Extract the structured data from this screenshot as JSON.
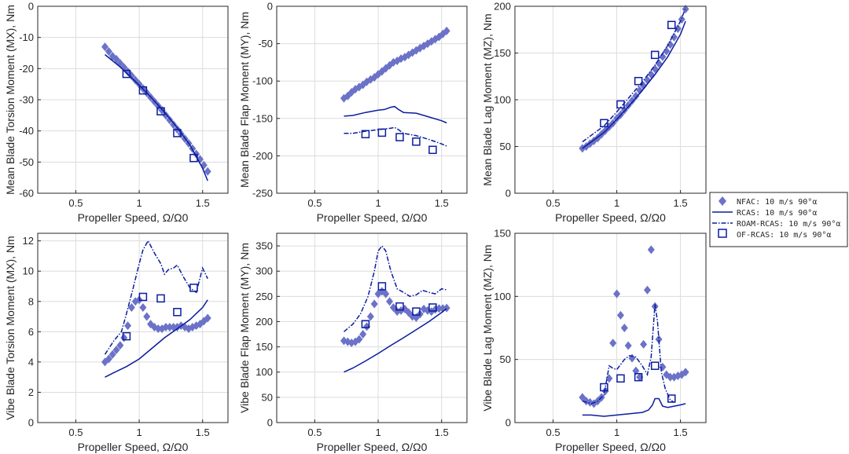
{
  "colors": {
    "series": "#0a1d9e",
    "marker_fill": "#6b72c8",
    "grid": "#dcdcdc",
    "axis": "#262626"
  },
  "legend": {
    "placement": "right",
    "entries": [
      {
        "label": "NFAC: 10 m/s 90°α",
        "style": "diamond"
      },
      {
        "label": "RCAS: 10 m/s 90°α",
        "style": "solid"
      },
      {
        "label": "ROAM-RCAS: 10 m/s 90°α",
        "style": "dashdot"
      },
      {
        "label": "OF-RCAS: 10 m/s 90°α",
        "style": "square"
      }
    ]
  },
  "chart_data": [
    {
      "type": "line",
      "xlabel": "Propeller Speed, Ω/Ω0",
      "ylabel": "Mean Blade Torsion Moment (MX), Nm",
      "xlim": [
        0.2,
        1.7
      ],
      "ylim": [
        -60,
        0
      ],
      "xticks": [
        0.5,
        1,
        1.5
      ],
      "yticks": [
        -60,
        -50,
        -40,
        -30,
        -20,
        -10,
        0
      ],
      "xtick_labels": [
        "0.5",
        "1",
        "1.5"
      ],
      "ytick_labels": [
        "-60",
        "-50",
        "-40",
        "-30",
        "-20",
        "-10",
        "0"
      ],
      "grid": true,
      "series": [
        {
          "name": "NFAC: 10 m/s 90°α",
          "style": "diamond",
          "x": [
            0.73,
            0.76,
            0.79,
            0.82,
            0.85,
            0.88,
            0.91,
            0.94,
            0.97,
            1.0,
            1.03,
            1.06,
            1.09,
            1.12,
            1.15,
            1.18,
            1.21,
            1.24,
            1.27,
            1.3,
            1.33,
            1.36,
            1.39,
            1.42,
            1.45,
            1.48,
            1.51,
            1.54
          ],
          "y": [
            -13,
            -14.5,
            -16,
            -17,
            -18.3,
            -19.6,
            -21,
            -22.3,
            -23.7,
            -25,
            -26.4,
            -27.8,
            -29.2,
            -30.6,
            -32,
            -33.4,
            -35,
            -36.5,
            -38,
            -39.5,
            -41,
            -42.5,
            -44,
            -45.7,
            -47.4,
            -49.1,
            -51,
            -53
          ]
        },
        {
          "name": "RCAS: 10 m/s 90°α",
          "style": "solid",
          "x": [
            0.73,
            0.85,
            1.0,
            1.1,
            1.2,
            1.3,
            1.4,
            1.5,
            1.54
          ],
          "y": [
            -15.5,
            -19.5,
            -25.3,
            -29.5,
            -34,
            -39,
            -44.5,
            -52,
            -56
          ]
        },
        {
          "name": "OF-RCAS: 10 m/s 90°α",
          "style": "square",
          "x": [
            0.9,
            1.03,
            1.17,
            1.3,
            1.43
          ],
          "y": [
            -21.7,
            -27,
            -33.7,
            -40.7,
            -48.7
          ]
        }
      ]
    },
    {
      "type": "line",
      "xlabel": "Propeller Speed, Ω/Ω0",
      "ylabel": "Mean Blade Flap Moment (MY), Nm",
      "xlim": [
        0.2,
        1.7
      ],
      "ylim": [
        -250,
        0
      ],
      "xticks": [
        0.5,
        1,
        1.5
      ],
      "yticks": [
        -250,
        -200,
        -150,
        -100,
        -50,
        0
      ],
      "xtick_labels": [
        "0.5",
        "1",
        "1.5"
      ],
      "ytick_labels": [
        "-250",
        "-200",
        "-150",
        "-100",
        "-50",
        "0"
      ],
      "grid": true,
      "series": [
        {
          "name": "NFAC: 10 m/s 90°α",
          "style": "diamond",
          "x": [
            0.73,
            0.76,
            0.79,
            0.82,
            0.85,
            0.88,
            0.91,
            0.94,
            0.97,
            1.0,
            1.03,
            1.06,
            1.09,
            1.12,
            1.15,
            1.18,
            1.21,
            1.24,
            1.27,
            1.3,
            1.33,
            1.36,
            1.39,
            1.42,
            1.45,
            1.48,
            1.51,
            1.54
          ],
          "y": [
            -123,
            -120,
            -115,
            -111,
            -108,
            -105,
            -101,
            -98,
            -95,
            -91,
            -87,
            -83,
            -79,
            -75,
            -73,
            -70,
            -68,
            -65,
            -62,
            -59,
            -56,
            -53,
            -50,
            -47,
            -44,
            -41,
            -37,
            -33
          ]
        },
        {
          "name": "RCAS: 10 m/s 90°α",
          "style": "solid",
          "x": [
            0.73,
            0.8,
            0.9,
            1.0,
            1.05,
            1.1,
            1.13,
            1.16,
            1.2,
            1.3,
            1.4,
            1.5,
            1.54
          ],
          "y": [
            -147,
            -146,
            -142,
            -139,
            -138,
            -135,
            -134,
            -138,
            -142,
            -143,
            -148,
            -153,
            -156
          ]
        },
        {
          "name": "ROAM-RCAS: 10 m/s 90°α",
          "style": "dashdot",
          "x": [
            0.73,
            0.8,
            0.9,
            1.0,
            1.05,
            1.1,
            1.13,
            1.16,
            1.2,
            1.3,
            1.4,
            1.5,
            1.54
          ],
          "y": [
            -170,
            -170,
            -167,
            -165,
            -164,
            -163,
            -162,
            -165,
            -170,
            -173,
            -178,
            -184,
            -187
          ]
        },
        {
          "name": "OF-RCAS: 10 m/s 90°α",
          "style": "square",
          "x": [
            0.9,
            1.03,
            1.17,
            1.3,
            1.43
          ],
          "y": [
            -171,
            -169,
            -175,
            -181,
            -192
          ]
        }
      ]
    },
    {
      "type": "line",
      "xlabel": "Propeller Speed, Ω/Ω0",
      "ylabel": "Mean Blade Lag Moment (MZ), Nm",
      "xlim": [
        0.2,
        1.7
      ],
      "ylim": [
        0,
        200
      ],
      "xticks": [
        0.5,
        1,
        1.5
      ],
      "yticks": [
        0,
        50,
        100,
        150,
        200
      ],
      "xtick_labels": [
        "0.5",
        "1",
        "1.5"
      ],
      "ytick_labels": [
        "0",
        "50",
        "100",
        "150",
        "200"
      ],
      "grid": true,
      "series": [
        {
          "name": "NFAC: 10 m/s 90°α",
          "style": "diamond",
          "x": [
            0.73,
            0.76,
            0.79,
            0.82,
            0.85,
            0.88,
            0.91,
            0.94,
            0.97,
            1.0,
            1.03,
            1.06,
            1.09,
            1.12,
            1.15,
            1.18,
            1.21,
            1.24,
            1.27,
            1.3,
            1.33,
            1.36,
            1.39,
            1.42,
            1.45,
            1.48,
            1.51,
            1.54
          ],
          "y": [
            48,
            50,
            53,
            56,
            59,
            63,
            67,
            71,
            75,
            80,
            84,
            89,
            94,
            99,
            104,
            110,
            115,
            121,
            127,
            133,
            139,
            146,
            152,
            159,
            167,
            176,
            186,
            197
          ]
        },
        {
          "name": "RCAS: 10 m/s 90°α",
          "style": "solid",
          "x": [
            0.73,
            0.8,
            0.9,
            1.0,
            1.1,
            1.2,
            1.3,
            1.4,
            1.5,
            1.54
          ],
          "y": [
            48,
            55,
            65,
            79,
            94,
            110,
            127,
            146,
            170,
            184
          ]
        },
        {
          "name": "ROAM-RCAS: 10 m/s 90°α",
          "style": "dashdot",
          "x": [
            0.73,
            0.8,
            0.9,
            1.0,
            1.1,
            1.2,
            1.3,
            1.4,
            1.5,
            1.54
          ],
          "y": [
            55,
            62,
            72,
            87,
            103,
            119,
            137,
            158,
            184,
            198
          ]
        },
        {
          "name": "OF-RCAS: 10 m/s 90°α",
          "style": "square",
          "x": [
            0.9,
            1.03,
            1.17,
            1.3,
            1.43
          ],
          "y": [
            75,
            95,
            120,
            148,
            180
          ]
        }
      ]
    },
    {
      "type": "line",
      "xlabel": "Propeller Speed, Ω/Ω0",
      "ylabel": "Vibe Blade Torsion Moment (MX), Nm",
      "xlim": [
        0.2,
        1.7
      ],
      "ylim": [
        0,
        12.5
      ],
      "xticks": [
        0.5,
        1,
        1.5
      ],
      "yticks": [
        0,
        2,
        4,
        6,
        8,
        10,
        12
      ],
      "xtick_labels": [
        "0.5",
        "1",
        "1.5"
      ],
      "ytick_labels": [
        "0",
        "2",
        "4",
        "6",
        "8",
        "10",
        "12"
      ],
      "grid": true,
      "series": [
        {
          "name": "NFAC: 10 m/s 90°α",
          "style": "diamond",
          "x": [
            0.73,
            0.76,
            0.79,
            0.82,
            0.85,
            0.88,
            0.91,
            0.94,
            0.97,
            1.0,
            1.03,
            1.06,
            1.09,
            1.12,
            1.15,
            1.18,
            1.21,
            1.24,
            1.27,
            1.3,
            1.33,
            1.36,
            1.39,
            1.42,
            1.45,
            1.48,
            1.51,
            1.54
          ],
          "y": [
            4.0,
            4.2,
            4.5,
            4.8,
            5.1,
            5.6,
            6.4,
            7.6,
            8.0,
            8.1,
            7.6,
            7.0,
            6.5,
            6.3,
            6.2,
            6.2,
            6.3,
            6.3,
            6.3,
            6.3,
            6.4,
            6.3,
            6.2,
            6.3,
            6.4,
            6.5,
            6.7,
            6.9
          ]
        },
        {
          "name": "RCAS: 10 m/s 90°α",
          "style": "solid",
          "x": [
            0.73,
            0.8,
            0.9,
            1.0,
            1.1,
            1.2,
            1.3,
            1.4,
            1.5,
            1.54
          ],
          "y": [
            3.0,
            3.3,
            3.7,
            4.2,
            4.9,
            5.6,
            6.2,
            6.8,
            7.6,
            8.1
          ]
        },
        {
          "name": "ROAM-RCAS: 10 m/s 90°α",
          "style": "dashdot",
          "x": [
            0.73,
            0.8,
            0.86,
            0.9,
            0.95,
            1.0,
            1.03,
            1.07,
            1.12,
            1.17,
            1.2,
            1.23,
            1.27,
            1.3,
            1.35,
            1.4,
            1.45,
            1.5,
            1.54
          ],
          "y": [
            4.5,
            5.4,
            6.0,
            7.2,
            8.8,
            10.5,
            11.4,
            12.0,
            11.2,
            10.5,
            9.8,
            10.1,
            10.2,
            10.4,
            9.6,
            8.9,
            8.6,
            10.2,
            9.5
          ]
        },
        {
          "name": "OF-RCAS: 10 m/s 90°α",
          "style": "square",
          "x": [
            0.9,
            1.03,
            1.17,
            1.3,
            1.43
          ],
          "y": [
            5.7,
            8.3,
            8.2,
            7.3,
            8.9
          ]
        }
      ]
    },
    {
      "type": "line",
      "xlabel": "Propeller Speed, Ω/Ω0",
      "ylabel": "Vibe Blade Flap Moment (MY), Nm",
      "xlim": [
        0.2,
        1.7
      ],
      "ylim": [
        0,
        375
      ],
      "xticks": [
        0.5,
        1,
        1.5
      ],
      "yticks": [
        0,
        50,
        100,
        150,
        200,
        250,
        300,
        350
      ],
      "xtick_labels": [
        "0.5",
        "1",
        "1.5"
      ],
      "ytick_labels": [
        "0",
        "50",
        "100",
        "150",
        "200",
        "250",
        "300",
        "350"
      ],
      "grid": true,
      "series": [
        {
          "name": "NFAC: 10 m/s 90°α",
          "style": "diamond",
          "x": [
            0.73,
            0.76,
            0.79,
            0.82,
            0.85,
            0.88,
            0.91,
            0.94,
            0.97,
            1.0,
            1.03,
            1.06,
            1.09,
            1.12,
            1.15,
            1.18,
            1.21,
            1.24,
            1.27,
            1.3,
            1.33,
            1.36,
            1.39,
            1.42,
            1.45,
            1.48,
            1.51,
            1.54
          ],
          "y": [
            162,
            160,
            158,
            160,
            165,
            175,
            190,
            210,
            235,
            255,
            260,
            255,
            240,
            228,
            220,
            222,
            225,
            218,
            210,
            208,
            215,
            225,
            222,
            220,
            224,
            226,
            226,
            227
          ]
        },
        {
          "name": "RCAS: 10 m/s 90°α",
          "style": "solid",
          "x": [
            0.73,
            0.8,
            0.9,
            1.0,
            1.1,
            1.2,
            1.3,
            1.4,
            1.5,
            1.54
          ],
          "y": [
            100,
            108,
            122,
            137,
            153,
            168,
            184,
            200,
            218,
            226
          ]
        },
        {
          "name": "ROAM-RCAS: 10 m/s 90°α",
          "style": "dashdot",
          "x": [
            0.73,
            0.8,
            0.86,
            0.92,
            0.97,
            1.0,
            1.03,
            1.06,
            1.1,
            1.15,
            1.2,
            1.25,
            1.3,
            1.35,
            1.4,
            1.45,
            1.5,
            1.54
          ],
          "y": [
            180,
            195,
            215,
            250,
            300,
            340,
            350,
            340,
            300,
            265,
            258,
            250,
            253,
            262,
            258,
            255,
            265,
            263
          ]
        },
        {
          "name": "OF-RCAS: 10 m/s 90°α",
          "style": "square",
          "x": [
            0.9,
            1.03,
            1.17,
            1.3,
            1.43
          ],
          "y": [
            195,
            270,
            230,
            220,
            228
          ]
        }
      ]
    },
    {
      "type": "line",
      "xlabel": "Propeller Speed, Ω/Ω0",
      "ylabel": "Vibe Blade Lag Moment (MZ), Nm",
      "xlim": [
        0.2,
        1.7
      ],
      "ylim": [
        0,
        150
      ],
      "xticks": [
        0.5,
        1,
        1.5
      ],
      "yticks": [
        0,
        50,
        100,
        150
      ],
      "xtick_labels": [
        "0.5",
        "1",
        "1.5"
      ],
      "ytick_labels": [
        "0",
        "50",
        "100",
        "150"
      ],
      "grid": true,
      "series": [
        {
          "name": "NFAC: 10 m/s 90°α",
          "style": "diamond",
          "x": [
            0.73,
            0.76,
            0.79,
            0.82,
            0.85,
            0.88,
            0.91,
            0.94,
            0.97,
            1.0,
            1.03,
            1.06,
            1.09,
            1.12,
            1.15,
            1.18,
            1.21,
            1.24,
            1.27,
            1.3,
            1.33,
            1.36,
            1.39,
            1.42,
            1.45,
            1.48,
            1.51,
            1.54
          ],
          "y": [
            20,
            17,
            16,
            15,
            17,
            20,
            25,
            35,
            63,
            102,
            85,
            75,
            61,
            51,
            41,
            36,
            62,
            105,
            137,
            92,
            66,
            44,
            38,
            36,
            36,
            37,
            38,
            40
          ]
        },
        {
          "name": "RCAS: 10 m/s 90°α",
          "style": "solid",
          "x": [
            0.73,
            0.8,
            0.9,
            1.0,
            1.1,
            1.2,
            1.25,
            1.28,
            1.3,
            1.33,
            1.36,
            1.4,
            1.45,
            1.5,
            1.54
          ],
          "y": [
            6,
            6,
            5,
            6,
            7,
            8,
            10,
            14,
            19,
            19,
            13,
            12,
            13,
            14,
            15
          ]
        },
        {
          "name": "ROAM-RCAS: 10 m/s 90°α",
          "style": "dashdot",
          "x": [
            0.73,
            0.8,
            0.85,
            0.9,
            0.94,
            0.97,
            1.0,
            1.03,
            1.06,
            1.1,
            1.15,
            1.2,
            1.24,
            1.27,
            1.3,
            1.32,
            1.35,
            1.38,
            1.42,
            1.45
          ],
          "y": [
            17,
            15,
            17,
            22,
            45,
            43,
            42,
            46,
            50,
            53,
            52,
            45,
            38,
            52,
            94,
            80,
            40,
            27,
            18,
            16
          ]
        },
        {
          "name": "OF-RCAS: 10 m/s 90°α",
          "style": "square",
          "x": [
            0.9,
            1.03,
            1.17,
            1.3,
            1.43
          ],
          "y": [
            28,
            35,
            36,
            45,
            19
          ]
        }
      ]
    }
  ]
}
